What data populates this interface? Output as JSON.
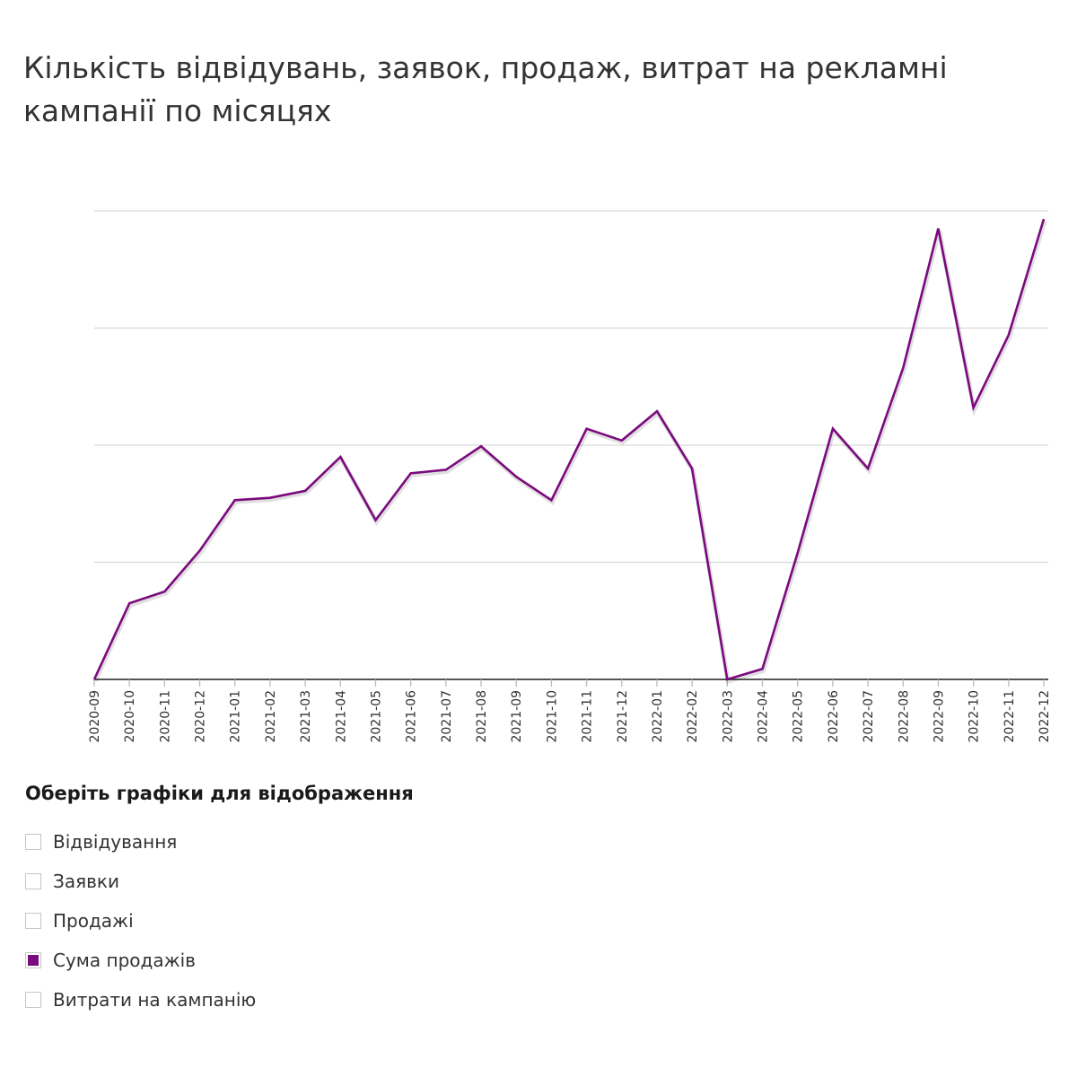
{
  "title": "Кількість відвідувань, заявок, продаж, витрат на рекламні кампанії по місяцях",
  "controls": {
    "heading": "Оберіть графіки для відображення",
    "options": [
      {
        "label": "Відвідування",
        "checked": false
      },
      {
        "label": "Заявки",
        "checked": false
      },
      {
        "label": "Продажі",
        "checked": false
      },
      {
        "label": "Сума продажів",
        "checked": true
      },
      {
        "label": "Витрати на кампанію",
        "checked": false
      }
    ]
  },
  "colors": {
    "series": "#7b0a7e",
    "grid": "#d9d9d9",
    "axis": "#555555",
    "text": "#333333"
  },
  "chart_data": {
    "type": "line",
    "title": "Кількість відвідувань, заявок, продаж, витрат на рекламні кампанії по місяцях",
    "xlabel": "",
    "ylabel": "",
    "categories": [
      "2020-09",
      "2020-10",
      "2020-11",
      "2020-12",
      "2021-01",
      "2021-02",
      "2021-03",
      "2021-04",
      "2021-05",
      "2021-06",
      "2021-07",
      "2021-08",
      "2021-09",
      "2021-10",
      "2021-11",
      "2021-12",
      "2022-01",
      "2022-02",
      "2022-03",
      "2022-04",
      "2022-05",
      "2022-06",
      "2022-07",
      "2022-08",
      "2022-09",
      "2022-10",
      "2022-11",
      "2022-12"
    ],
    "series": [
      {
        "values": [
          0,
          0.65,
          0.75,
          1.1,
          1.53,
          1.55,
          1.61,
          1.9,
          1.36,
          1.76,
          1.79,
          1.99,
          1.73,
          1.53,
          2.14,
          2.04,
          2.29,
          1.8,
          0,
          0.09,
          1.08,
          2.14,
          1.8,
          2.66,
          3.85,
          2.32,
          2.94,
          3.93
        ]
      }
    ],
    "ylim": [
      0,
      4
    ],
    "y_ticks": [
      0,
      1,
      2,
      3,
      4
    ],
    "y_tick_labels_visible": false,
    "grid": true,
    "legend": "none"
  }
}
